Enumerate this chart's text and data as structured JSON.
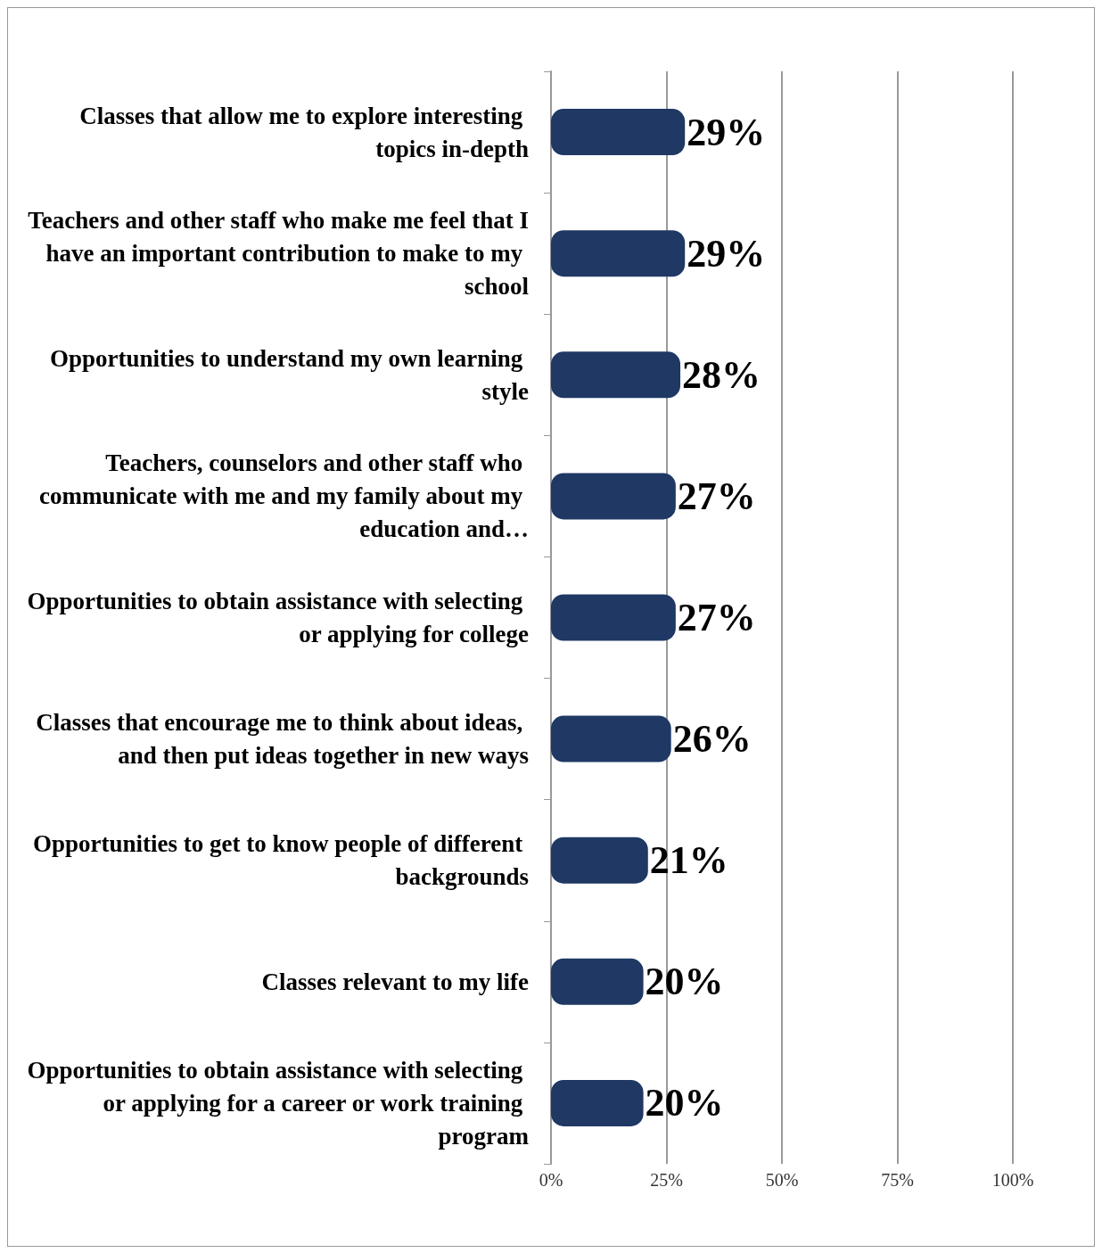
{
  "chart_data": {
    "type": "bar",
    "orientation": "horizontal",
    "categories": [
      "Classes that allow me to explore interesting topics in-depth",
      "Teachers and other staff who make me feel that I have an important contribution to make to my school",
      "Opportunities to understand my own learning style",
      "Teachers, counselors and other staff who communicate with me and my family about my education and…",
      "Opportunities to obtain assistance with selecting or applying for college",
      "Classes that encourage me to think about ideas, and then put ideas together in new ways",
      "Opportunities to get to know people of different backgrounds",
      "Classes relevant to my life",
      "Opportunities to obtain assistance with selecting or applying for a career or work training program"
    ],
    "values": [
      29,
      29,
      28,
      27,
      27,
      26,
      21,
      20,
      20
    ],
    "value_labels": [
      "29%",
      "29%",
      "28%",
      "27%",
      "27%",
      "26%",
      "21%",
      "20%",
      "20%"
    ],
    "color": "#1f3864",
    "xlim": [
      0,
      100
    ],
    "xticks": [
      {
        "value": 0,
        "label": "0%"
      },
      {
        "value": 25,
        "label": "25%"
      },
      {
        "value": 50,
        "label": "50%"
      },
      {
        "value": 75,
        "label": "75%"
      },
      {
        "value": 100,
        "label": "100%"
      }
    ],
    "grid": "x"
  }
}
